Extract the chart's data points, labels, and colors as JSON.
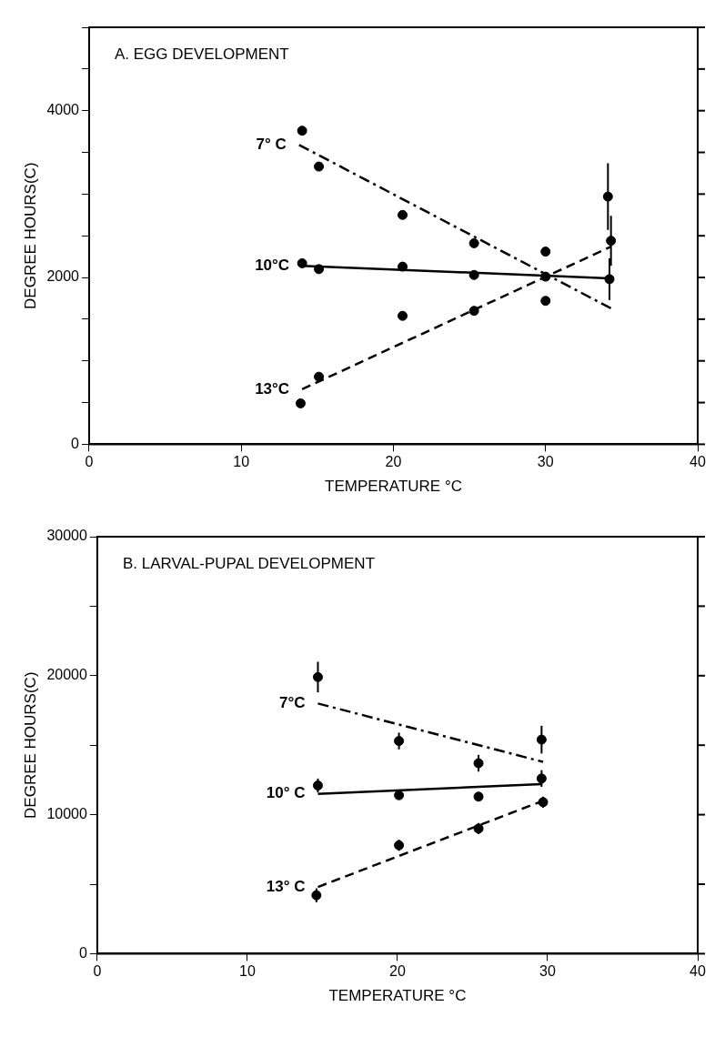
{
  "chart_data": [
    {
      "type": "scatter",
      "title": "A. EGG DEVELOPMENT",
      "xlabel": "TEMPERATURE °C",
      "ylabel": "DEGREE HOURS(C)",
      "xlim": [
        0,
        40
      ],
      "xticks": [
        0,
        10,
        20,
        30,
        40
      ],
      "ylim": [
        0,
        5000
      ],
      "yticks": [
        0,
        {
          "value": 500,
          "label": null
        },
        {
          "value": 1000,
          "label": null
        },
        {
          "value": 1500,
          "label": null
        },
        2000,
        {
          "value": 2500,
          "label": null
        },
        {
          "value": 3000,
          "label": null
        },
        {
          "value": 3500,
          "label": null
        },
        4000,
        {
          "value": 4500,
          "label": null
        },
        {
          "value": 5000,
          "label": null
        }
      ],
      "grid": false,
      "legend": false,
      "series": [
        {
          "type": "scatter",
          "color": "#000000",
          "marker": "circle",
          "x": [
            14,
            15.1,
            20.6,
            25.3,
            30,
            34.1
          ],
          "values": [
            3760,
            3330,
            2750,
            2410,
            2310,
            2970
          ],
          "errors": [
            null,
            null,
            null,
            null,
            null,
            400
          ]
        },
        {
          "type": "scatter",
          "color": "#000000",
          "marker": "circle",
          "x": [
            14,
            15.1,
            20.6,
            25.3,
            30,
            34.2
          ],
          "values": [
            2170,
            2100,
            2130,
            2030,
            2010,
            1980
          ],
          "errors": [
            null,
            null,
            null,
            null,
            null,
            250
          ]
        },
        {
          "type": "scatter",
          "color": "#000000",
          "marker": "circle",
          "x": [
            13.9,
            15.1,
            20.6,
            25.3,
            30,
            34.3
          ],
          "values": [
            490,
            810,
            1540,
            1600,
            1720,
            2440
          ],
          "errors": [
            null,
            null,
            null,
            null,
            null,
            300
          ]
        },
        {
          "type": "line",
          "name": "7° C",
          "color": "#000000",
          "marker": "none",
          "line_style": "dashdot",
          "x": [
            13.8,
            34.3
          ],
          "values": [
            3590,
            1630
          ]
        },
        {
          "type": "line",
          "name": "10°C",
          "color": "#000000",
          "marker": "none",
          "line_style": "solid",
          "x": [
            14,
            34.2
          ],
          "values": [
            2140,
            1990
          ]
        },
        {
          "type": "line",
          "name": "13°C",
          "color": "#000000",
          "marker": "none",
          "line_style": "dashed",
          "x": [
            14,
            34.3
          ],
          "values": [
            660,
            2370
          ]
        }
      ]
    },
    {
      "type": "scatter",
      "title": "B. LARVAL-PUPAL DEVELOPMENT",
      "xlabel": "TEMPERATURE °C",
      "ylabel": "DEGREE HOURS(C)",
      "xlim": [
        0,
        40
      ],
      "xticks": [
        0,
        10,
        20,
        30,
        40
      ],
      "ylim": [
        0,
        30000
      ],
      "yticks": [
        0,
        {
          "value": 5000,
          "label": null
        },
        10000,
        {
          "value": 15000,
          "label": null
        },
        20000,
        {
          "value": 25000,
          "label": null
        },
        30000
      ],
      "grid": false,
      "legend": false,
      "series": [
        {
          "type": "scatter",
          "color": "#000000",
          "marker": "circle",
          "x": [
            14.7,
            20.1,
            25.4,
            29.6
          ],
          "values": [
            19900,
            15300,
            13700,
            15400
          ],
          "errors": [
            1100,
            600,
            600,
            1000
          ]
        },
        {
          "type": "scatter",
          "color": "#000000",
          "marker": "circle",
          "x": [
            14.7,
            20.1,
            25.4,
            29.6
          ],
          "values": [
            12100,
            11400,
            11300,
            12600
          ],
          "errors": [
            500,
            null,
            null,
            600
          ]
        },
        {
          "type": "scatter",
          "color": "#000000",
          "marker": "circle",
          "x": [
            14.6,
            20.1,
            25.4,
            29.7
          ],
          "values": [
            4200,
            7800,
            9000,
            10900
          ],
          "errors": [
            500,
            400,
            400,
            400
          ]
        },
        {
          "type": "line",
          "name": "7°C",
          "color": "#000000",
          "marker": "none",
          "line_style": "dashdot",
          "x": [
            14.7,
            29.7
          ],
          "values": [
            18000,
            13800
          ]
        },
        {
          "type": "line",
          "name": "10° C",
          "color": "#000000",
          "marker": "none",
          "line_style": "solid",
          "x": [
            14.7,
            29.6
          ],
          "values": [
            11500,
            12200
          ]
        },
        {
          "type": "line",
          "name": "13° C",
          "color": "#000000",
          "marker": "none",
          "line_style": "dashed",
          "x": [
            14.7,
            29.7
          ],
          "values": [
            4800,
            11000
          ]
        }
      ]
    }
  ]
}
